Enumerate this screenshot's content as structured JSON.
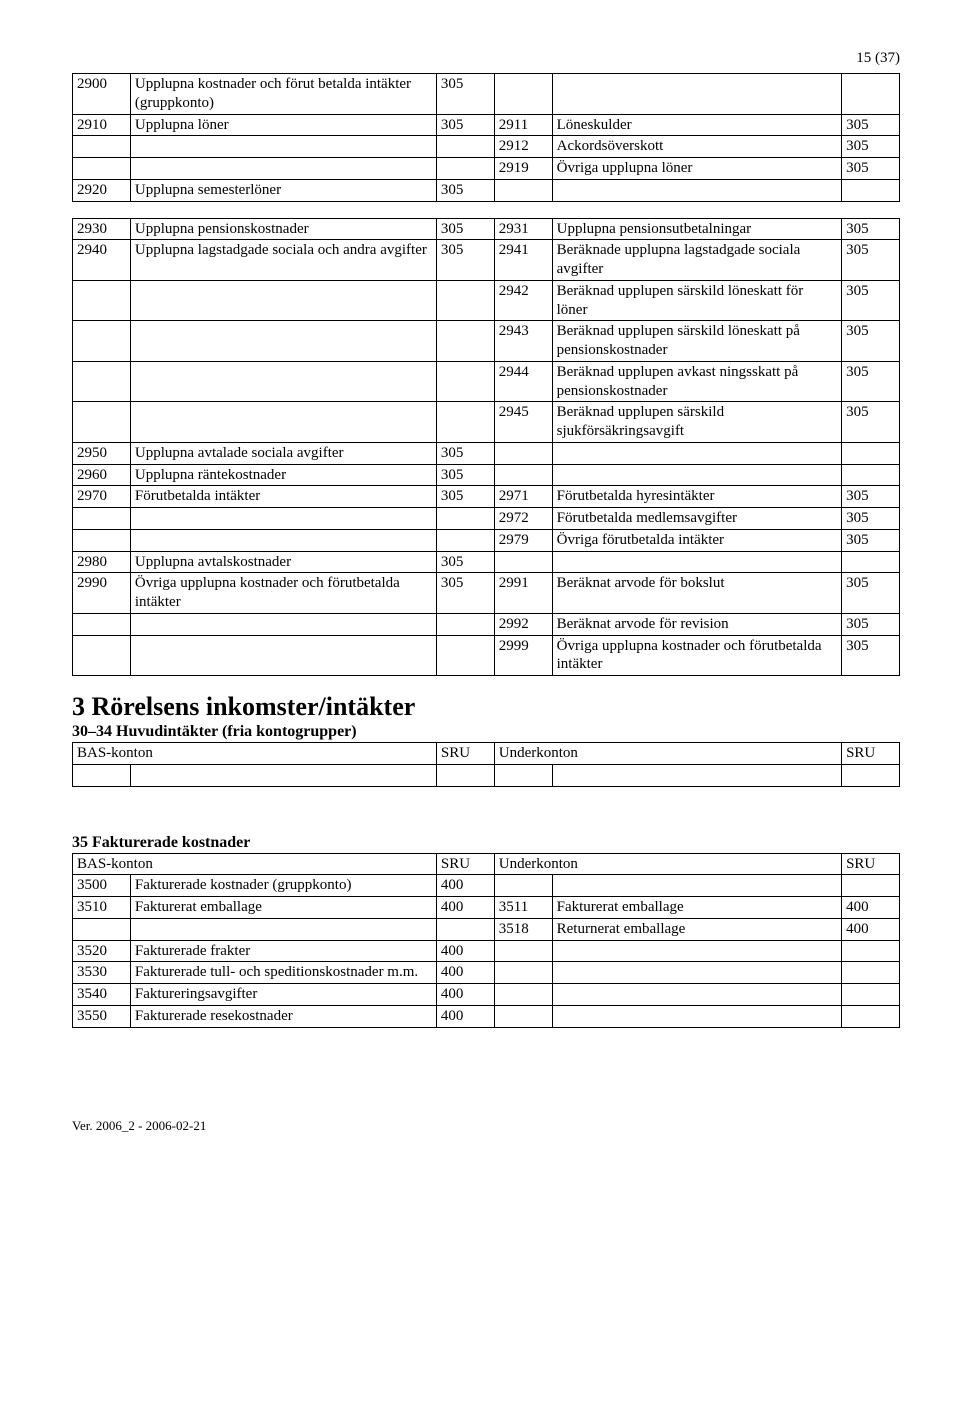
{
  "page_number": "15 (37)",
  "table1": [
    [
      "2900",
      "Upplupna kostnader och förut betalda intäkter (gruppkonto)",
      "305",
      "",
      "",
      ""
    ],
    [
      "2910",
      "Upplupna löner",
      "305",
      "2911",
      "Löneskulder",
      "305"
    ],
    [
      "",
      "",
      "",
      "2912",
      "Ackordsöverskott",
      "305"
    ],
    [
      "",
      "",
      "",
      "2919",
      "Övriga upplupna löner",
      "305"
    ],
    [
      "2920",
      "Upplupna semesterlöner",
      "305",
      "",
      "",
      ""
    ]
  ],
  "table2": [
    [
      "2930",
      "Upplupna pensionskostnader",
      "305",
      "2931",
      "Upplupna pensionsutbetalningar",
      "305"
    ],
    [
      "2940",
      "Upplupna lagstadgade sociala och andra avgifter",
      "305",
      "2941",
      "Beräknade upplupna lagstadgade sociala avgifter",
      "305"
    ],
    [
      "",
      "",
      "",
      "2942",
      "Beräknad upplupen särskild löneskatt för löner",
      "305"
    ],
    [
      "",
      "",
      "",
      "2943",
      "Beräknad upplupen särskild löneskatt på pensionskostnader",
      "305"
    ],
    [
      "",
      "",
      "",
      "2944",
      "Beräknad upplupen avkast ningsskatt på pensionskostnader",
      "305"
    ],
    [
      "",
      "",
      "",
      "2945",
      "Beräknad upplupen särskild sjukförsäkringsavgift",
      "305"
    ],
    [
      "2950",
      "Upplupna avtalade sociala avgifter",
      "305",
      "",
      "",
      ""
    ],
    [
      "2960",
      "Upplupna räntekostnader",
      "305",
      "",
      "",
      ""
    ],
    [
      "2970",
      "Förutbetalda intäkter",
      "305",
      "2971",
      "Förutbetalda hyresintäkter",
      "305"
    ],
    [
      "",
      "",
      "",
      "2972",
      "Förutbetalda medlemsavgifter",
      "305"
    ],
    [
      "",
      "",
      "",
      "2979",
      "Övriga förutbetalda intäkter",
      "305"
    ],
    [
      "2980",
      "Upplupna avtalskostnader",
      "305",
      "",
      "",
      ""
    ],
    [
      "2990",
      "Övriga upplupna kostnader och förutbetalda intäkter",
      "305",
      "2991",
      "Beräknat arvode för bokslut",
      "305"
    ],
    [
      "",
      "",
      "",
      "2992",
      "Beräknat arvode för revision",
      "305"
    ],
    [
      "",
      "",
      "",
      "2999",
      "Övriga upplupna kostnader och förutbetalda intäkter",
      "305"
    ]
  ],
  "section3_title": "3 Rörelsens inkomster/intäkter",
  "section3_sub": "30–34 Huvudintäkter (fria kontogrupper)",
  "header_row": [
    "BAS-konton",
    "",
    "SRU",
    "Underkonton",
    "",
    "SRU"
  ],
  "empty_row": [
    "",
    "",
    "",
    "",
    "",
    ""
  ],
  "section35_sub": "35 Fakturerade kostnader",
  "table35": [
    [
      "3500",
      "Fakturerade kostnader (gruppkonto)",
      "400",
      "",
      "",
      ""
    ],
    [
      "3510",
      "Fakturerat emballage",
      "400",
      "3511",
      "Fakturerat emballage",
      "400"
    ],
    [
      "",
      "",
      "",
      "3518",
      "Returnerat emballage",
      "400"
    ],
    [
      "3520",
      "Fakturerade frakter",
      "400",
      "",
      "",
      ""
    ],
    [
      "3530",
      "Fakturerade tull- och speditionskostnader m.m.",
      "400",
      "",
      "",
      ""
    ],
    [
      "3540",
      "Faktureringsavgifter",
      "400",
      "",
      "",
      ""
    ],
    [
      "3550",
      "Fakturerade resekostnader",
      "400",
      "",
      "",
      ""
    ]
  ],
  "footer": "Ver. 2006_2 - 2006-02-21"
}
